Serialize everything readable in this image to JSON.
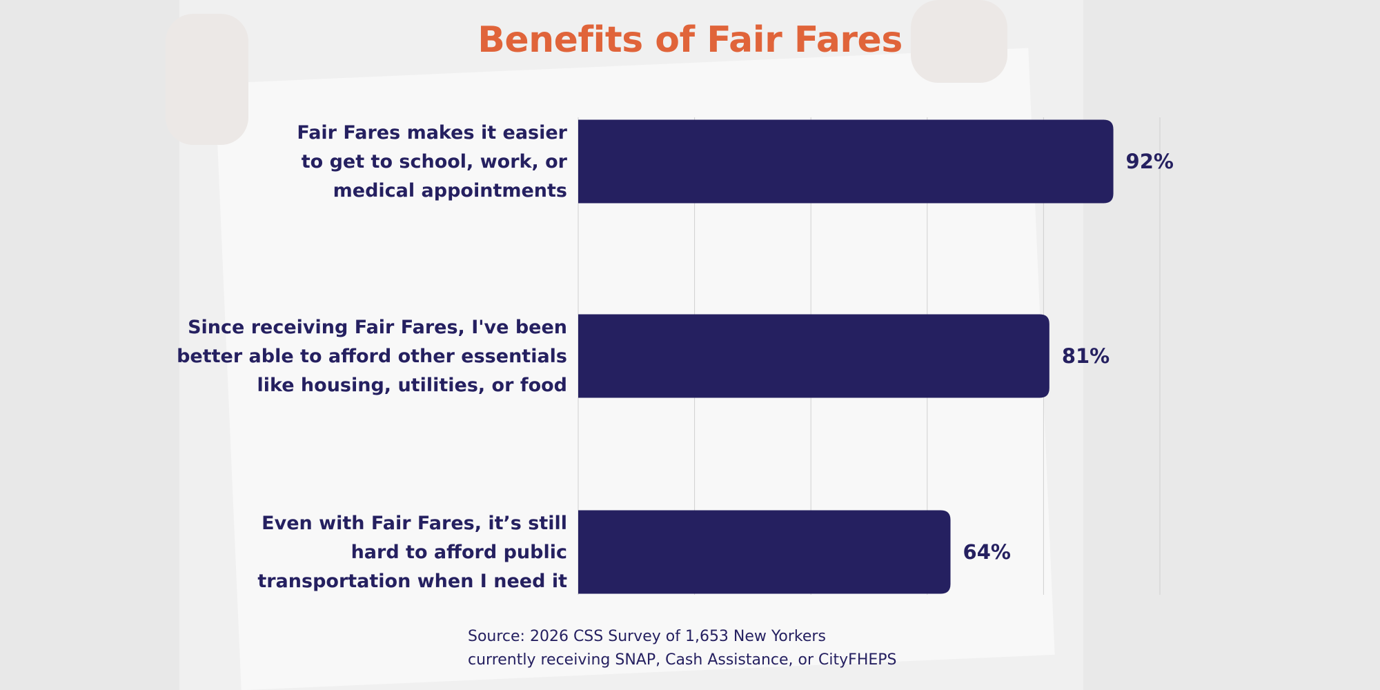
{
  "chart_data": {
    "type": "bar",
    "orientation": "horizontal",
    "title": "Benefits of Fair Fares",
    "categories": [
      [
        "Fair Fares makes it easier",
        "to get to school, work, or",
        "medical appointments"
      ],
      [
        "Since receiving Fair Fares, I've been",
        "better able to afford other essentials",
        "like housing, utilities, or food"
      ],
      [
        "Even with Fair Fares, it’s still",
        "hard to afford public",
        "transportation when I need it"
      ]
    ],
    "values": [
      92,
      81,
      64
    ],
    "value_labels": [
      "92%",
      "81%",
      "64%"
    ],
    "xlim": [
      0,
      100
    ],
    "grid": true,
    "bar_color": "#252060"
  },
  "source": {
    "line1": "Source: 2026 CSS Survey of 1,653 New Yorkers",
    "line2": "currently receiving SNAP, Cash Assistance, or CityFHEPS"
  },
  "colors": {
    "title": "#e0643a",
    "text": "#252060",
    "grid": "#cfcfcf"
  }
}
